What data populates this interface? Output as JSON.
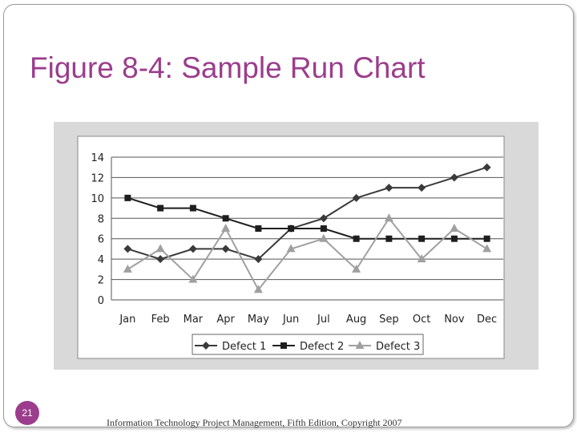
{
  "slide": {
    "title": "Figure 8-4: Sample Run Chart",
    "number": "21",
    "footer": "Information Technology Project Management, Fifth Edition, Copyright 2007"
  },
  "colors": {
    "title": "#9b3d8c",
    "panel_background": "#d9d9d9",
    "plot_background": "#ffffff",
    "grid": "#555555"
  },
  "chart_data": {
    "type": "line",
    "title": "",
    "xlabel": "",
    "ylabel": "",
    "categories": [
      "Jan",
      "Feb",
      "Mar",
      "Apr",
      "May",
      "Jun",
      "Jul",
      "Aug",
      "Sep",
      "Oct",
      "Nov",
      "Dec"
    ],
    "ylim": [
      0,
      14
    ],
    "yticks": [
      0,
      2,
      4,
      6,
      8,
      10,
      12,
      14
    ],
    "grid": true,
    "legend_position": "bottom",
    "series": [
      {
        "name": "Defect 1",
        "marker": "diamond",
        "color": "#3a3a3a",
        "values": [
          5,
          4,
          5,
          5,
          4,
          7,
          8,
          10,
          11,
          11,
          12,
          13
        ]
      },
      {
        "name": "Defect 2",
        "marker": "square",
        "color": "#1e1e1e",
        "values": [
          10,
          9,
          9,
          8,
          7,
          7,
          7,
          6,
          6,
          6,
          6,
          6
        ]
      },
      {
        "name": "Defect 3",
        "marker": "triangle",
        "color": "#a0a0a0",
        "values": [
          3,
          5,
          2,
          7,
          1,
          5,
          6,
          3,
          8,
          4,
          7,
          5
        ]
      }
    ]
  }
}
